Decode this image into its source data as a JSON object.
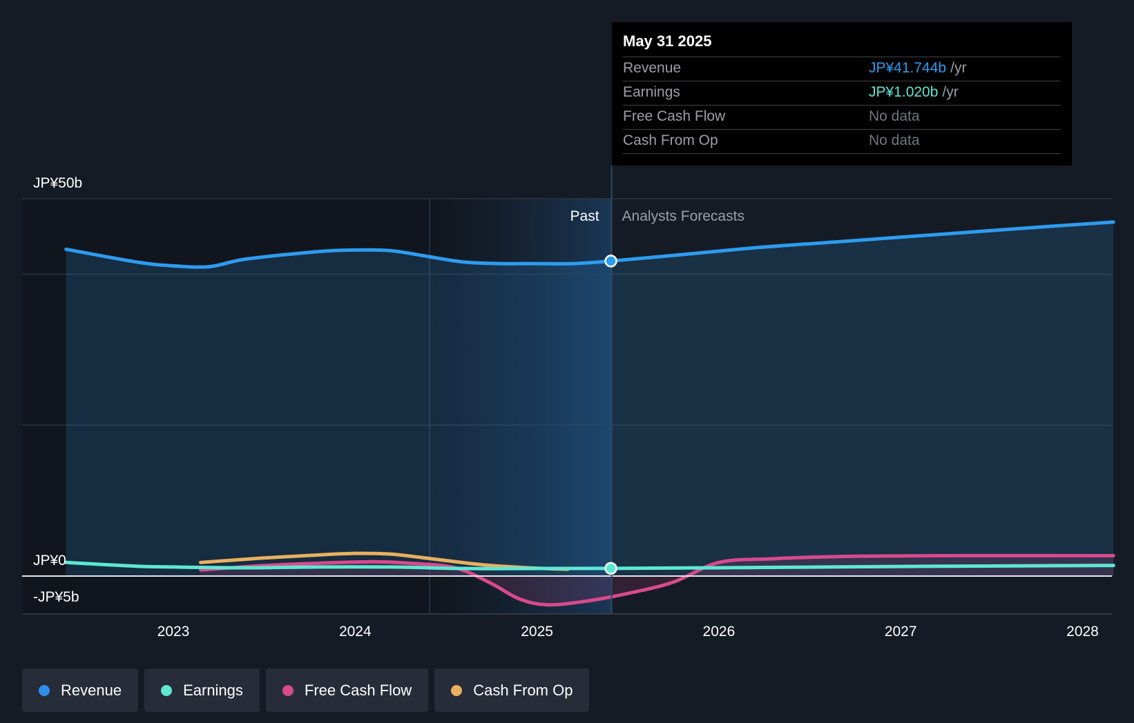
{
  "tooltip": {
    "date": "May 31 2025",
    "rows": [
      {
        "label": "Revenue",
        "value": "JP¥41.744b",
        "unit": "/yr",
        "color": "#2d9cf0"
      },
      {
        "label": "Earnings",
        "value": "JP¥1.020b",
        "unit": "/yr",
        "color": "#5ee8d4"
      },
      {
        "label": "Free Cash Flow",
        "value": "No data",
        "unit": "",
        "color": "#707780"
      },
      {
        "label": "Cash From Op",
        "value": "No data",
        "unit": "",
        "color": "#707780"
      }
    ]
  },
  "legend": [
    {
      "label": "Revenue",
      "color": "#2d8ef0"
    },
    {
      "label": "Earnings",
      "color": "#5ee8d4"
    },
    {
      "label": "Free Cash Flow",
      "color": "#d84a8c"
    },
    {
      "label": "Cash From Op",
      "color": "#e8b060"
    }
  ],
  "chart_data": {
    "type": "line",
    "past_label": "Past",
    "forecast_label": "Analysts Forecasts",
    "y_tick_labels": [
      "JP¥50b",
      "JP¥0",
      "-JP¥5b"
    ],
    "ylim": [
      -5,
      50
    ],
    "xlim": [
      2022.4,
      2028.17
    ],
    "x_ticks": [
      2023,
      2024,
      2025,
      2026,
      2027,
      2028
    ],
    "past_end": 2025.41,
    "highlight_start": 2024.41,
    "series": [
      {
        "name": "Revenue",
        "color": "#2d9cf0",
        "points": [
          [
            2022.41,
            43.3
          ],
          [
            2022.8,
            41.6
          ],
          [
            2023.0,
            41.1
          ],
          [
            2023.2,
            41.0
          ],
          [
            2023.4,
            42.0
          ],
          [
            2023.8,
            43.0
          ],
          [
            2024.0,
            43.2
          ],
          [
            2024.2,
            43.1
          ],
          [
            2024.41,
            42.3
          ],
          [
            2024.6,
            41.6
          ],
          [
            2024.8,
            41.4
          ],
          [
            2025.0,
            41.4
          ],
          [
            2025.2,
            41.4
          ],
          [
            2025.41,
            41.74
          ],
          [
            2025.8,
            42.6
          ],
          [
            2026.2,
            43.5
          ],
          [
            2026.6,
            44.2
          ],
          [
            2027.0,
            44.9
          ],
          [
            2027.4,
            45.6
          ],
          [
            2027.8,
            46.3
          ],
          [
            2028.17,
            46.9
          ]
        ]
      },
      {
        "name": "Earnings",
        "color": "#5ee8d4",
        "points": [
          [
            2022.41,
            1.8
          ],
          [
            2022.8,
            1.3
          ],
          [
            2023.0,
            1.2
          ],
          [
            2023.4,
            1.1
          ],
          [
            2023.8,
            1.2
          ],
          [
            2024.2,
            1.2
          ],
          [
            2024.6,
            1.0
          ],
          [
            2025.0,
            1.0
          ],
          [
            2025.41,
            1.02
          ],
          [
            2026.0,
            1.1
          ],
          [
            2026.6,
            1.2
          ],
          [
            2027.2,
            1.3
          ],
          [
            2028.17,
            1.4
          ]
        ]
      },
      {
        "name": "Free Cash Flow",
        "color": "#d84a8c",
        "points": [
          [
            2023.15,
            0.8
          ],
          [
            2023.5,
            1.4
          ],
          [
            2023.8,
            1.7
          ],
          [
            2024.1,
            1.9
          ],
          [
            2024.3,
            1.7
          ],
          [
            2024.55,
            1.1
          ],
          [
            2024.75,
            -1.0
          ],
          [
            2024.9,
            -3.0
          ],
          [
            2025.05,
            -3.8
          ],
          [
            2025.25,
            -3.4
          ],
          [
            2025.5,
            -2.3
          ],
          [
            2025.75,
            -0.8
          ],
          [
            2026.0,
            1.8
          ],
          [
            2026.3,
            2.3
          ],
          [
            2026.7,
            2.6
          ],
          [
            2027.2,
            2.7
          ],
          [
            2028.17,
            2.7
          ]
        ]
      },
      {
        "name": "Cash From Op",
        "color": "#e8b060",
        "points": [
          [
            2023.15,
            1.8
          ],
          [
            2023.5,
            2.4
          ],
          [
            2023.8,
            2.8
          ],
          [
            2024.0,
            3.0
          ],
          [
            2024.2,
            2.9
          ],
          [
            2024.45,
            2.2
          ],
          [
            2024.7,
            1.5
          ],
          [
            2024.95,
            1.1
          ],
          [
            2025.17,
            0.9
          ]
        ]
      }
    ]
  }
}
